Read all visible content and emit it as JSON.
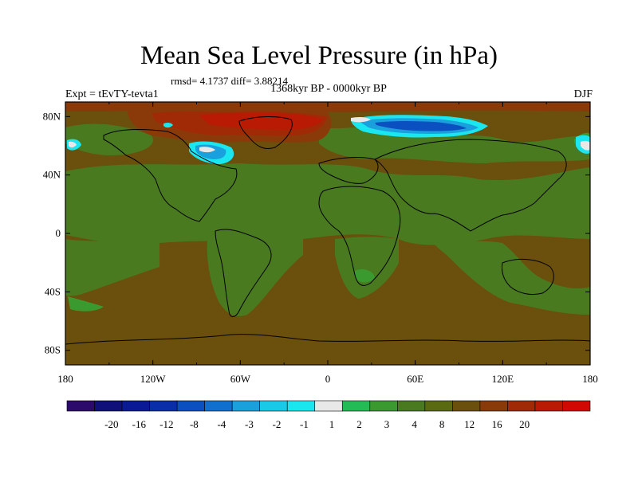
{
  "figure": {
    "title": "Mean Sea Level Pressure (in hPa)",
    "stats": "rmsd= 4.1737 diff= 3.88214",
    "period": "1368kyr BP - 0000kyr BP",
    "experiment": "Expt = tEvTY-tevta1",
    "season": "DJF"
  },
  "map": {
    "projection": "cylindrical equidistant",
    "lon_range": [
      -180,
      180
    ],
    "lat_range": [
      -90,
      90
    ],
    "lat_ticks": [
      {
        "value": 80,
        "label": "80N"
      },
      {
        "value": 40,
        "label": "40N"
      },
      {
        "value": 0,
        "label": "0"
      },
      {
        "value": -40,
        "label": "40S"
      },
      {
        "value": -80,
        "label": "80S"
      }
    ],
    "lon_ticks": [
      {
        "value": -180,
        "label": "180"
      },
      {
        "value": -120,
        "label": "120W"
      },
      {
        "value": -60,
        "label": "60W"
      },
      {
        "value": 0,
        "label": "0"
      },
      {
        "value": 60,
        "label": "60E"
      },
      {
        "value": 120,
        "label": "120E"
      },
      {
        "value": 180,
        "label": "180"
      }
    ],
    "background_field_color": "#6b4f0c",
    "coastline_color": "#000000"
  },
  "colorbar": {
    "colors": [
      "#2b0a6b",
      "#10107a",
      "#0a1a96",
      "#0a2eaa",
      "#0a50c0",
      "#1070d0",
      "#1aa0dc",
      "#1ac8e8",
      "#1ae6f0",
      "#e8e8e8",
      "#22bb55",
      "#3a9a30",
      "#4a7a20",
      "#5a6a10",
      "#6b4f0c",
      "#8a3a08",
      "#a02a06",
      "#b81a04",
      "#d00a02"
    ],
    "labels": [
      "-20",
      "-16",
      "-12",
      "-8",
      "-4",
      "-3",
      "-2",
      "-1",
      "1",
      "2",
      "3",
      "4",
      "8",
      "12",
      "16",
      "20"
    ]
  }
}
